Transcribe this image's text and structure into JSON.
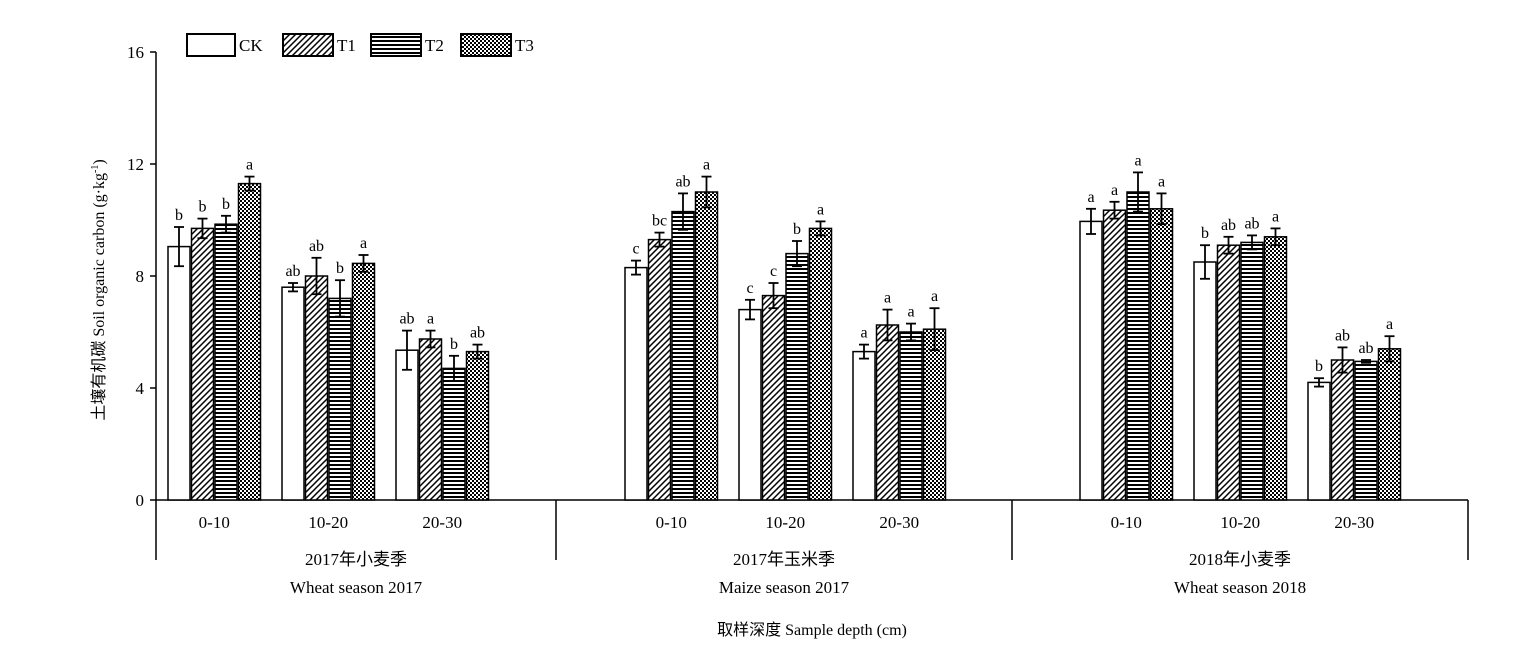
{
  "chart_data": {
    "type": "bar",
    "title": "",
    "ylabel": "土壤有机碳 Soil organic carbon (g·kg",
    "ylabel_sup": "-1",
    "ylabel_end": ")",
    "xlabel": "取样深度 Sample depth (cm)",
    "ylim": [
      0,
      16
    ],
    "yticks": [
      0,
      4,
      8,
      12,
      16
    ],
    "legend_position": "top-left",
    "series": [
      {
        "name": "CK",
        "pattern": "blank"
      },
      {
        "name": "T1",
        "pattern": "diagonal"
      },
      {
        "name": "T2",
        "pattern": "horizontal"
      },
      {
        "name": "T3",
        "pattern": "checker"
      }
    ],
    "seasons": [
      {
        "label_cn": "2017年小麦季",
        "label_en": "Wheat season 2017",
        "depths": [
          {
            "label": "0-10",
            "values": [
              9.05,
              9.7,
              9.85,
              11.3
            ],
            "errors": [
              0.7,
              0.35,
              0.3,
              0.25
            ],
            "letters": [
              "b",
              "b",
              "b",
              "a"
            ]
          },
          {
            "label": "10-20",
            "values": [
              7.6,
              8.0,
              7.2,
              8.45
            ],
            "errors": [
              0.15,
              0.65,
              0.65,
              0.3
            ],
            "letters": [
              "ab",
              "ab",
              "b",
              "a"
            ]
          },
          {
            "label": "20-30",
            "values": [
              5.35,
              5.75,
              4.7,
              5.3
            ],
            "errors": [
              0.7,
              0.3,
              0.45,
              0.25
            ],
            "letters": [
              "ab",
              "a",
              "b",
              "ab"
            ]
          }
        ]
      },
      {
        "label_cn": "2017年玉米季",
        "label_en": "Maize season 2017",
        "depths": [
          {
            "label": "0-10",
            "values": [
              8.3,
              9.3,
              10.3,
              11.0
            ],
            "errors": [
              0.25,
              0.25,
              0.65,
              0.55
            ],
            "letters": [
              "c",
              "bc",
              "ab",
              "a"
            ]
          },
          {
            "label": "10-20",
            "values": [
              6.8,
              7.3,
              8.8,
              9.7
            ],
            "errors": [
              0.35,
              0.45,
              0.45,
              0.25
            ],
            "letters": [
              "c",
              "c",
              "b",
              "a"
            ]
          },
          {
            "label": "20-30",
            "values": [
              5.3,
              6.25,
              6.0,
              6.1
            ],
            "errors": [
              0.25,
              0.55,
              0.3,
              0.75
            ],
            "letters": [
              "a",
              "a",
              "a",
              "a"
            ]
          }
        ]
      },
      {
        "label_cn": "2018年小麦季",
        "label_en": "Wheat season 2018",
        "depths": [
          {
            "label": "0-10",
            "values": [
              9.95,
              10.35,
              11.0,
              10.4
            ],
            "errors": [
              0.45,
              0.3,
              0.7,
              0.55
            ],
            "letters": [
              "a",
              "a",
              "a",
              "a"
            ]
          },
          {
            "label": "10-20",
            "values": [
              8.5,
              9.1,
              9.2,
              9.4
            ],
            "errors": [
              0.6,
              0.3,
              0.25,
              0.3
            ],
            "letters": [
              "b",
              "ab",
              "ab",
              "a"
            ]
          },
          {
            "label": "20-30",
            "values": [
              4.2,
              5.0,
              4.95,
              5.4
            ],
            "errors": [
              0.15,
              0.45,
              0.05,
              0.45
            ],
            "letters": [
              "b",
              "ab",
              "ab",
              "a"
            ]
          }
        ]
      }
    ]
  }
}
